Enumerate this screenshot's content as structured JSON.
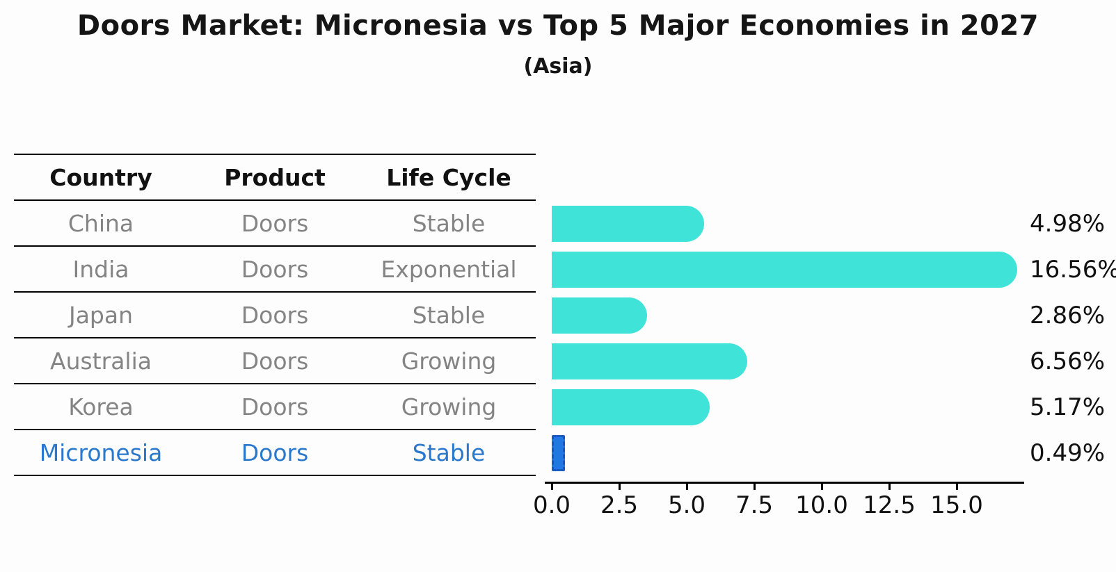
{
  "header": {
    "title": "Doors Market: Micronesia vs Top 5 Major Economies in 2027",
    "subtitle": "(Asia)"
  },
  "table": {
    "headers": {
      "country": "Country",
      "product": "Product",
      "life_cycle": "Life Cycle"
    },
    "rows": [
      {
        "country": "China",
        "product": "Doors",
        "life_cycle": "Stable",
        "highlight": false
      },
      {
        "country": "India",
        "product": "Doors",
        "life_cycle": "Exponential",
        "highlight": false
      },
      {
        "country": "Japan",
        "product": "Doors",
        "life_cycle": "Stable",
        "highlight": false
      },
      {
        "country": "Australia",
        "product": "Doors",
        "life_cycle": "Growing",
        "highlight": false
      },
      {
        "country": "Korea",
        "product": "Doors",
        "life_cycle": "Growing",
        "highlight": false
      },
      {
        "country": "Micronesia",
        "product": "Doors",
        "life_cycle": "Stable",
        "highlight": true
      }
    ]
  },
  "chart_data": {
    "type": "bar",
    "orientation": "horizontal",
    "title": "Doors Market: Micronesia vs Top 5 Major Economies in 2027",
    "subtitle": "(Asia)",
    "categories": [
      "China",
      "India",
      "Japan",
      "Australia",
      "Korea",
      "Micronesia"
    ],
    "values": [
      4.98,
      16.56,
      2.86,
      6.56,
      5.17,
      0.49
    ],
    "value_labels": [
      "4.98%",
      "16.56%",
      "2.86%",
      "6.56%",
      "5.17%",
      "0.49%"
    ],
    "unit": "%",
    "x_tick_labels": [
      "0.0",
      "2.5",
      "5.0",
      "7.5",
      "10.0",
      "12.5",
      "15.0"
    ],
    "x_tick_values": [
      0,
      2.5,
      5,
      7.5,
      10,
      12.5,
      15
    ],
    "xlim": [
      0,
      17.5
    ],
    "grid": false,
    "legend": false,
    "bar_color": "#3fe3d8",
    "highlight_bar_color": "#2277e2",
    "highlight_bar_border_color": "#1759c0",
    "highlight_text_color": "#2878cd",
    "row_text_color": "#848484",
    "highlight_index": 5
  }
}
